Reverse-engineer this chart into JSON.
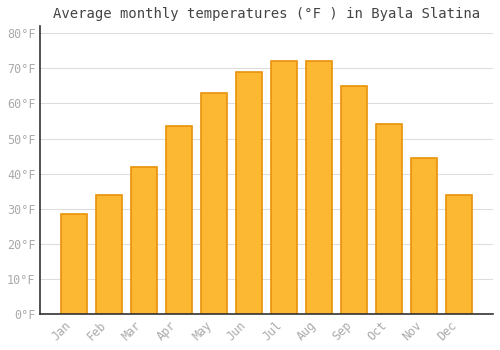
{
  "title": "Average monthly temperatures (°F ) in Byala Slatina",
  "months": [
    "Jan",
    "Feb",
    "Mar",
    "Apr",
    "May",
    "Jun",
    "Jul",
    "Aug",
    "Sep",
    "Oct",
    "Nov",
    "Dec"
  ],
  "values": [
    28.5,
    34,
    42,
    53.5,
    63,
    69,
    72,
    72,
    65,
    54,
    44.5,
    34
  ],
  "bar_color": "#FDB833",
  "bar_edge_color": "#E8920A",
  "background_color": "#FFFFFF",
  "grid_color": "#dddddd",
  "text_color": "#aaaaaa",
  "title_color": "#444444",
  "axis_color": "#333333",
  "ylim": [
    0,
    82
  ],
  "yticks": [
    0,
    10,
    20,
    30,
    40,
    50,
    60,
    70,
    80
  ],
  "title_fontsize": 10,
  "tick_fontsize": 8.5,
  "bar_width": 0.75
}
